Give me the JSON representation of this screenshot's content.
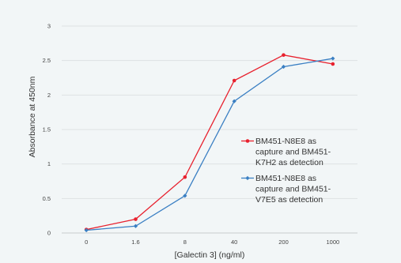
{
  "chart_data": {
    "type": "line",
    "title": "",
    "xlabel": "[Galectin 3] (ng/ml)",
    "ylabel": "Absorbance at 450nm",
    "categories": [
      "0",
      "1.6",
      "8",
      "40",
      "200",
      "1000"
    ],
    "ylim": [
      0,
      3
    ],
    "yticks": [
      "0",
      "0.5",
      "1",
      "1.5",
      "2",
      "2.5",
      "3"
    ],
    "grid": true,
    "legend_position": "right",
    "series": [
      {
        "name_lines": [
          "BM451-N8E8 as",
          "capture and BM451-",
          "K7H2 as detection"
        ],
        "color": "#e8212e",
        "marker": "circle",
        "values": [
          0.05,
          0.2,
          0.81,
          2.21,
          2.58,
          2.45
        ]
      },
      {
        "name_lines": [
          "BM451-N8E8 as",
          "capture and BM451-",
          "V7E5 as detection"
        ],
        "color": "#3a7fc3",
        "marker": "diamond",
        "values": [
          0.04,
          0.1,
          0.54,
          1.91,
          2.41,
          2.53
        ]
      }
    ]
  }
}
